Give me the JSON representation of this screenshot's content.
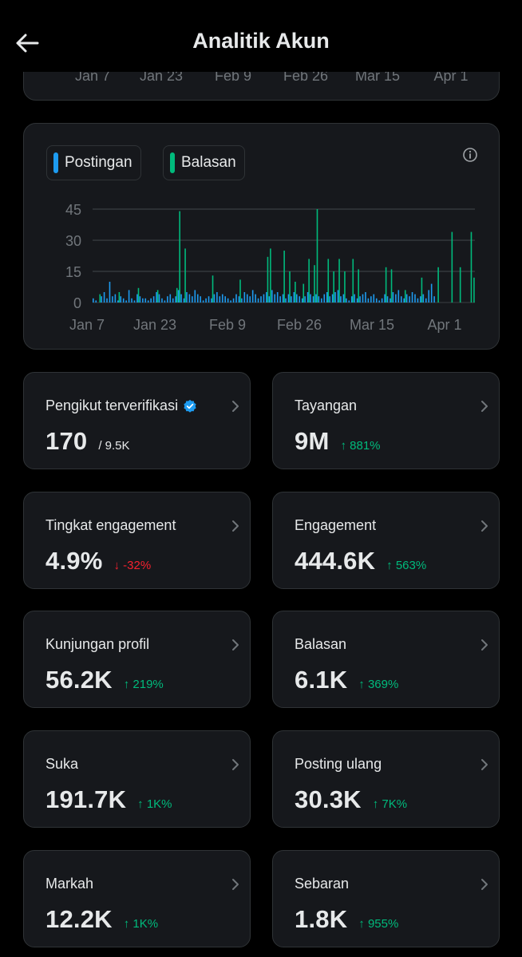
{
  "header": {
    "title": "Analitik Akun",
    "back_label": "back"
  },
  "prev_chart": {
    "ticks": [
      "Jan 7",
      "Jan 23",
      "Feb 9",
      "Feb 26",
      "Mar 15",
      "Apr 1"
    ]
  },
  "colors": {
    "posts": "#1d9bf0",
    "replies": "#00ba7c",
    "up": "#00ba7c",
    "down": "#f4212e"
  },
  "legend": {
    "posts": "Postingan",
    "replies": "Balasan"
  },
  "chart_data": {
    "type": "bar",
    "title": "",
    "y_ticks": [
      "45",
      "30",
      "15",
      "0"
    ],
    "x_ticks": [
      "Jan 7",
      "Jan 23",
      "Feb 9",
      "Feb 26",
      "Mar 15",
      "Apr 1"
    ],
    "ylim": [
      0,
      45
    ],
    "series": [
      {
        "name": "Postingan",
        "values": [
          2,
          1,
          0,
          3,
          5,
          2,
          10,
          3,
          4,
          1,
          3,
          2,
          1,
          6,
          2,
          1,
          4,
          3,
          2,
          2,
          1,
          2,
          3,
          5,
          4,
          2,
          1,
          3,
          4,
          2,
          3,
          6,
          4,
          2,
          5,
          4,
          3,
          6,
          4,
          3,
          1,
          2,
          3,
          2,
          4,
          5,
          3,
          4,
          3,
          2,
          1,
          2,
          4,
          3,
          2,
          5,
          4,
          3,
          6,
          4,
          2,
          3,
          4,
          5,
          3,
          6,
          4,
          5,
          3,
          4,
          2,
          4,
          3,
          5,
          4,
          3,
          2,
          3,
          5,
          4,
          3,
          4,
          3,
          2,
          4,
          5,
          3,
          4,
          5,
          6,
          3,
          4,
          2,
          1,
          3,
          4,
          2,
          3,
          4,
          5,
          2,
          3,
          4,
          2,
          1,
          2,
          4,
          3,
          2,
          5,
          4,
          6,
          3,
          2,
          4,
          3,
          5,
          4,
          2,
          3,
          4,
          2,
          6,
          9,
          3
        ]
      },
      {
        "name": "Balasan",
        "values": [
          0,
          0,
          4,
          0,
          0,
          0,
          0,
          0,
          0,
          5,
          0,
          0,
          0,
          0,
          0,
          0,
          7,
          0,
          0,
          0,
          0,
          0,
          0,
          6,
          0,
          0,
          0,
          0,
          0,
          0,
          7,
          44,
          0,
          26,
          0,
          0,
          0,
          0,
          0,
          0,
          0,
          0,
          0,
          13,
          0,
          0,
          0,
          0,
          0,
          0,
          0,
          0,
          0,
          11,
          0,
          0,
          0,
          0,
          0,
          0,
          0,
          0,
          0,
          22,
          26,
          0,
          0,
          0,
          0,
          25,
          0,
          15,
          0,
          10,
          0,
          0,
          9,
          0,
          21,
          0,
          18,
          45,
          0,
          0,
          0,
          21,
          0,
          15,
          0,
          21,
          0,
          15,
          0,
          0,
          21,
          0,
          16,
          0,
          0,
          0,
          0,
          0,
          0,
          0,
          0,
          0,
          17,
          0,
          16,
          0,
          0,
          0,
          0,
          6,
          0,
          0,
          0,
          0,
          0,
          12,
          0,
          0,
          0,
          0,
          0,
          17,
          0,
          0,
          0,
          0,
          34,
          0,
          0,
          17,
          0,
          0,
          0,
          34,
          12
        ]
      }
    ]
  },
  "stats": [
    {
      "label": "Pengikut terverifikasi",
      "value": "170",
      "sub": "/ 9.5K",
      "change": "",
      "dir": "",
      "verified": true
    },
    {
      "label": "Tayangan",
      "value": "9M",
      "sub": "",
      "change": "↑ 881%",
      "dir": "up"
    },
    {
      "label": "Tingkat engagement",
      "value": "4.9%",
      "sub": "",
      "change": "↓ -32%",
      "dir": "down"
    },
    {
      "label": "Engagement",
      "value": "444.6K",
      "sub": "",
      "change": "↑ 563%",
      "dir": "up"
    },
    {
      "label": "Kunjungan profil",
      "value": "56.2K",
      "sub": "",
      "change": "↑ 219%",
      "dir": "up"
    },
    {
      "label": "Balasan",
      "value": "6.1K",
      "sub": "",
      "change": "↑ 369%",
      "dir": "up"
    },
    {
      "label": "Suka",
      "value": "191.7K",
      "sub": "",
      "change": "↑ 1K%",
      "dir": "up"
    },
    {
      "label": "Posting ulang",
      "value": "30.3K",
      "sub": "",
      "change": "↑ 7K%",
      "dir": "up"
    },
    {
      "label": "Markah",
      "value": "12.2K",
      "sub": "",
      "change": "↑ 1K%",
      "dir": "up"
    },
    {
      "label": "Sebaran",
      "value": "1.8K",
      "sub": "",
      "change": "↑ 955%",
      "dir": "up"
    }
  ]
}
